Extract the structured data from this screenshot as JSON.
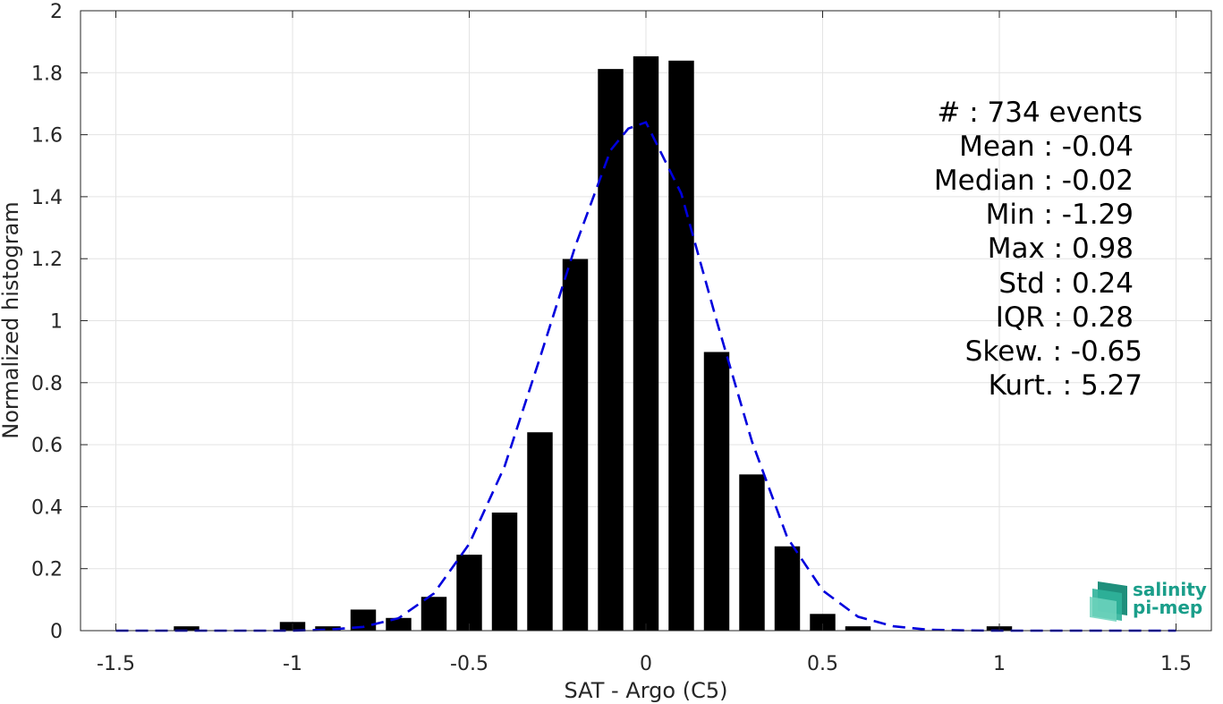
{
  "chart_data": {
    "type": "bar",
    "xlabel": "SAT - Argo (C5)",
    "ylabel": "Normalized histogram",
    "xlim": [
      -1.6,
      1.6
    ],
    "ylim": [
      0,
      2
    ],
    "x_ticks": [
      "-1.5",
      "-1",
      "-0.5",
      "0",
      "0.5",
      "1",
      "1.5"
    ],
    "x_tick_values": [
      -1.5,
      -1,
      -0.5,
      0,
      0.5,
      1,
      1.5
    ],
    "y_ticks": [
      "0",
      "0.2",
      "0.4",
      "0.6",
      "0.8",
      "1",
      "1.2",
      "1.4",
      "1.6",
      "1.8",
      "2"
    ],
    "y_tick_values": [
      0,
      0.2,
      0.4,
      0.6,
      0.8,
      1,
      1.2,
      1.4,
      1.6,
      1.8,
      2
    ],
    "grid": true,
    "bar_color": "#000000",
    "bars": [
      {
        "x": -1.3,
        "y": 0.014
      },
      {
        "x": -1.0,
        "y": 0.028
      },
      {
        "x": -0.9,
        "y": 0.014
      },
      {
        "x": -0.8,
        "y": 0.068
      },
      {
        "x": -0.7,
        "y": 0.041
      },
      {
        "x": -0.6,
        "y": 0.109
      },
      {
        "x": -0.5,
        "y": 0.245
      },
      {
        "x": -0.4,
        "y": 0.381
      },
      {
        "x": -0.3,
        "y": 0.64
      },
      {
        "x": -0.2,
        "y": 1.199
      },
      {
        "x": -0.1,
        "y": 1.812
      },
      {
        "x": 0.0,
        "y": 1.853
      },
      {
        "x": 0.1,
        "y": 1.839
      },
      {
        "x": 0.2,
        "y": 0.899
      },
      {
        "x": 0.3,
        "y": 0.504
      },
      {
        "x": 0.4,
        "y": 0.272
      },
      {
        "x": 0.5,
        "y": 0.054
      },
      {
        "x": 0.6,
        "y": 0.014
      },
      {
        "x": 1.0,
        "y": 0.014
      }
    ],
    "fit_curve": {
      "style": "dashed",
      "color": "#0000dd",
      "x": [
        -1.5,
        -1.4,
        -1.3,
        -1.2,
        -1.1,
        -1.0,
        -0.9,
        -0.8,
        -0.7,
        -0.6,
        -0.5,
        -0.4,
        -0.3,
        -0.2,
        -0.1,
        -0.05,
        0.0,
        0.1,
        0.2,
        0.3,
        0.4,
        0.5,
        0.6,
        0.7,
        0.8,
        0.9,
        1.0,
        1.1,
        1.2,
        1.3,
        1.4,
        1.5
      ],
      "y": [
        0.0,
        0.0,
        0.0,
        0.0,
        0.0,
        0.0,
        0.003,
        0.012,
        0.04,
        0.12,
        0.28,
        0.53,
        0.88,
        1.24,
        1.55,
        1.62,
        1.64,
        1.41,
        1.0,
        0.61,
        0.3,
        0.13,
        0.045,
        0.014,
        0.003,
        0.001,
        0.0,
        0.0,
        0.0,
        0.0,
        0.0,
        0.0
      ]
    }
  },
  "stats": [
    "#  : 734 events",
    "Mean : -0.04",
    "Median : -0.02",
    "Min : -1.29",
    "Max : 0.98",
    "Std : 0.24",
    "IQR : 0.28",
    "Skew. : -0.65",
    "Kurt. : 5.27"
  ],
  "logo": {
    "line1": "salinity",
    "line2": "pi-mep",
    "color": "#1a9e8a"
  }
}
